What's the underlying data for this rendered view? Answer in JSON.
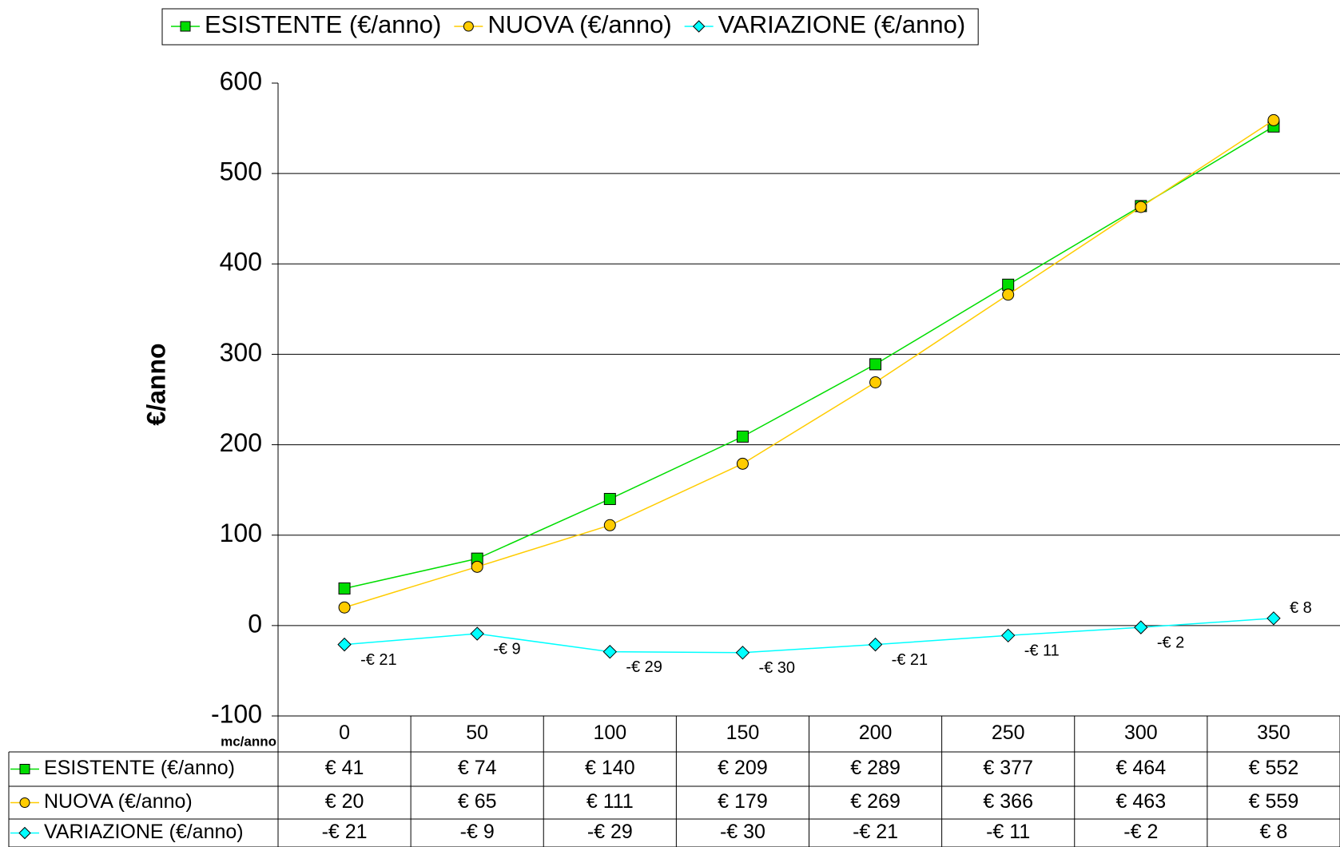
{
  "chart_data": {
    "type": "line",
    "y_label": "€/anno",
    "x_label": "mc/anno",
    "categories": [
      "0",
      "50",
      "100",
      "150",
      "200",
      "250",
      "300",
      "350"
    ],
    "series": [
      {
        "name": "ESISTENTE (€/anno)",
        "color": "#00dd00",
        "marker": "square",
        "values": [
          41,
          74,
          140,
          209,
          289,
          377,
          464,
          552
        ],
        "value_labels": [
          "€ 41",
          "€ 74",
          "€ 140",
          "€ 209",
          "€ 289",
          "€ 377",
          "€ 464",
          "€ 552"
        ]
      },
      {
        "name": "NUOVA (€/anno)",
        "color": "#ffcc00",
        "marker": "circle",
        "values": [
          20,
          65,
          111,
          179,
          269,
          366,
          463,
          559
        ],
        "value_labels": [
          "€ 20",
          "€ 65",
          "€ 111",
          "€ 179",
          "€ 269",
          "€ 366",
          "€ 463",
          "€ 559"
        ]
      },
      {
        "name": "VARIAZIONE (€/anno)",
        "color": "#00ffff",
        "marker": "diamond",
        "data_labels": true,
        "values": [
          -21,
          -9,
          -29,
          -30,
          -21,
          -11,
          -2,
          8
        ],
        "value_labels": [
          "-€ 21",
          "-€ 9",
          "-€ 29",
          "-€ 30",
          "-€ 21",
          "-€ 11",
          "-€ 2",
          "€ 8"
        ]
      }
    ],
    "ylim": [
      -100,
      600
    ],
    "yticks": [
      -100,
      0,
      100,
      200,
      300,
      400,
      500,
      600
    ],
    "grid": true,
    "legend": "top"
  }
}
